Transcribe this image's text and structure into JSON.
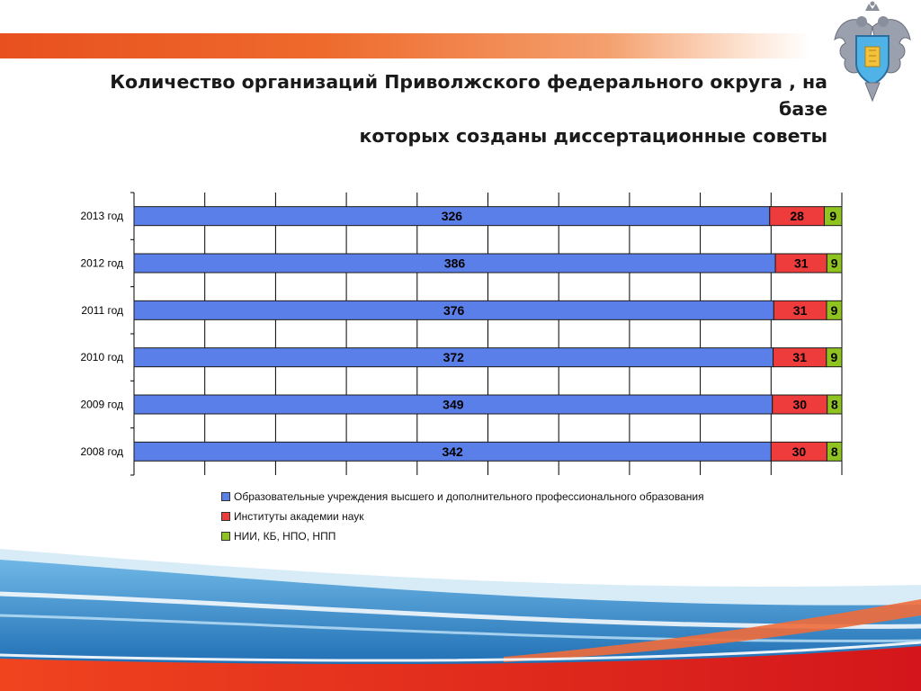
{
  "title": {
    "line1": "Количество организаций Приволжского федерального округа , на базе",
    "line2": "которых созданы диссертационные советы"
  },
  "chart_data": {
    "type": "bar",
    "orientation": "horizontal",
    "stacked": "percent",
    "categories": [
      "2013 год",
      "2012 год",
      "2011 год",
      "2010 год",
      "2009 год",
      "2008 год"
    ],
    "series": [
      {
        "name": "Образовательные учреждения высшего и дополнительного профессионального образования",
        "values": [
          326,
          386,
          376,
          372,
          349,
          342
        ],
        "color": "#5b7fe8"
      },
      {
        "name": "Институты академии наук",
        "values": [
          28,
          31,
          31,
          31,
          30,
          30
        ],
        "color": "#ee3b3b"
      },
      {
        "name": "НИИ, КБ, НПО, НПП",
        "values": [
          9,
          9,
          9,
          9,
          8,
          8
        ],
        "color": "#8fc31f"
      }
    ],
    "grid": true,
    "legend_position": "bottom"
  },
  "colors": {
    "accent_orange": "#e8501f",
    "wave_blue": "#1a6fc0",
    "wave_red": "#e02a1e"
  },
  "icons": {
    "emblem": "double-headed-eagle-emblem-icon"
  }
}
